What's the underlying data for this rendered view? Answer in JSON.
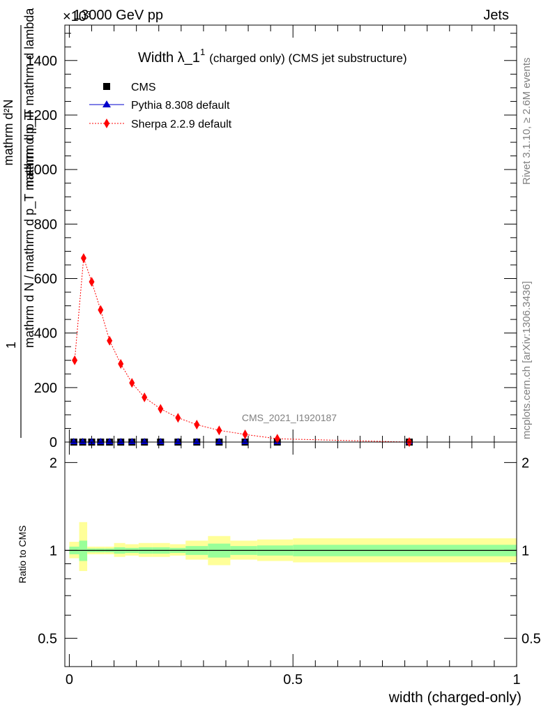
{
  "header": {
    "left": "13000 GeV pp",
    "right": "Jets",
    "scale": "×10³"
  },
  "side_text": {
    "rivet": "Rivet 3.1.10, ≥ 2.6M events",
    "mcplots": "mcplots.cern.ch [arXiv:1306.3436]"
  },
  "watermark": "CMS_2021_I1920187",
  "title": {
    "main": "Width λ_1",
    "sup": "1",
    "rest": "(charged only) (CMS jet substructure)"
  },
  "legend": [
    {
      "label": "CMS",
      "marker": "square",
      "color": "#000000"
    },
    {
      "label": "Pythia 8.308 default",
      "marker": "triangle",
      "color": "#0000cc"
    },
    {
      "label": "Sherpa 2.2.9 default",
      "marker": "diamond",
      "color": "#ff0000"
    }
  ],
  "top_ylabel": {
    "numer": "1",
    "denom": "mathrm d N / mathrm d p_T mathrm d p_T",
    "numer2": "mathrm d²N",
    "denom2": "mathrm d p_T mathrm d lambda"
  },
  "bottom_ylabel": "Ratio to CMS",
  "xlabel": "width (charged-only)",
  "chart_data": [
    {
      "type": "scatter",
      "panel": "main",
      "xlim": [
        -0.01,
        1.0
      ],
      "ylim": [
        0,
        1530
      ],
      "y_unit_multiplier": 1000,
      "y_ticks": [
        "0",
        "200",
        "400",
        "600",
        "800",
        "1000",
        "1200",
        "1400"
      ],
      "x_ticks": [
        "0",
        "0.5",
        "1"
      ],
      "series": [
        {
          "name": "CMS",
          "color": "#000000",
          "x": [
            0.01,
            0.03,
            0.05,
            0.07,
            0.09,
            0.115,
            0.14,
            0.168,
            0.204,
            0.243,
            0.285,
            0.335,
            0.393,
            0.465,
            0.76
          ],
          "y": [
            0,
            0,
            0,
            0,
            0,
            0,
            0,
            0,
            0,
            0,
            0,
            0,
            0,
            0,
            0
          ]
        },
        {
          "name": "Pythia 8.308 default",
          "color": "#0000cc",
          "x": [
            0.01,
            0.03,
            0.05,
            0.07,
            0.09,
            0.115,
            0.14,
            0.168,
            0.204,
            0.243,
            0.285,
            0.335,
            0.393,
            0.465,
            0.76
          ],
          "y": [
            0,
            0,
            0,
            0,
            0,
            0,
            0,
            0,
            0,
            0,
            0,
            0,
            0,
            0,
            0
          ]
        },
        {
          "name": "Sherpa 2.2.9 default",
          "color": "#ff0000",
          "x": [
            0.012,
            0.032,
            0.05,
            0.07,
            0.09,
            0.115,
            0.14,
            0.168,
            0.204,
            0.243,
            0.285,
            0.335,
            0.393,
            0.465,
            0.76
          ],
          "y": [
            300,
            675,
            588,
            485,
            372,
            287,
            217,
            164,
            122,
            89,
            64,
            43,
            28,
            12,
            0
          ]
        }
      ]
    },
    {
      "type": "area",
      "panel": "ratio",
      "xlim": [
        -0.01,
        1.0
      ],
      "ylim": [
        0.4,
        2.35
      ],
      "log_scale_y": true,
      "y_ticks": [
        "0.5",
        "1",
        "2"
      ],
      "x_ticks": [
        "0",
        "0.5",
        "1"
      ],
      "reference_line": 1,
      "bands": [
        {
          "x0": 0.0,
          "x1": 0.022,
          "outer": [
            0.94,
            1.07
          ],
          "inner": [
            0.97,
            1.03
          ]
        },
        {
          "x0": 0.022,
          "x1": 0.04,
          "outer": [
            0.85,
            1.25
          ],
          "inner": [
            0.92,
            1.08
          ]
        },
        {
          "x0": 0.04,
          "x1": 0.06,
          "outer": [
            0.97,
            1.03
          ],
          "inner": [
            0.985,
            1.015
          ]
        },
        {
          "x0": 0.06,
          "x1": 0.08,
          "outer": [
            0.97,
            1.03
          ],
          "inner": [
            0.985,
            1.015
          ]
        },
        {
          "x0": 0.08,
          "x1": 0.1,
          "outer": [
            0.97,
            1.03
          ],
          "inner": [
            0.985,
            1.015
          ]
        },
        {
          "x0": 0.1,
          "x1": 0.125,
          "outer": [
            0.95,
            1.06
          ],
          "inner": [
            0.975,
            1.025
          ]
        },
        {
          "x0": 0.125,
          "x1": 0.155,
          "outer": [
            0.96,
            1.05
          ],
          "inner": [
            0.98,
            1.02
          ]
        },
        {
          "x0": 0.155,
          "x1": 0.185,
          "outer": [
            0.95,
            1.06
          ],
          "inner": [
            0.975,
            1.025
          ]
        },
        {
          "x0": 0.185,
          "x1": 0.225,
          "outer": [
            0.95,
            1.06
          ],
          "inner": [
            0.975,
            1.025
          ]
        },
        {
          "x0": 0.225,
          "x1": 0.26,
          "outer": [
            0.96,
            1.05
          ],
          "inner": [
            0.98,
            1.02
          ]
        },
        {
          "x0": 0.26,
          "x1": 0.31,
          "outer": [
            0.93,
            1.08
          ],
          "inner": [
            0.965,
            1.035
          ]
        },
        {
          "x0": 0.31,
          "x1": 0.36,
          "outer": [
            0.89,
            1.12
          ],
          "inner": [
            0.945,
            1.055
          ]
        },
        {
          "x0": 0.36,
          "x1": 0.42,
          "outer": [
            0.93,
            1.08
          ],
          "inner": [
            0.965,
            1.035
          ]
        },
        {
          "x0": 0.42,
          "x1": 0.5,
          "outer": [
            0.92,
            1.09
          ],
          "inner": [
            0.96,
            1.04
          ]
        },
        {
          "x0": 0.5,
          "x1": 1.0,
          "outer": [
            0.91,
            1.1
          ],
          "inner": [
            0.955,
            1.045
          ]
        }
      ]
    }
  ]
}
